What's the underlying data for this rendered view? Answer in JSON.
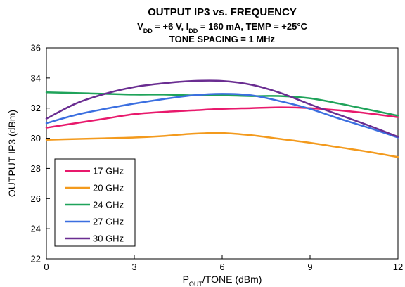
{
  "chart_data": {
    "type": "line",
    "title": "OUTPUT IP3 vs. FREQUENCY",
    "subtitle": {
      "v_sym": "V",
      "v_sub": "DD",
      "v_val": " = +6 V, I",
      "i_sub": "DD",
      "rest": " = 160 mA, TEMP = +25°C"
    },
    "subtitle2": "TONE SPACING = 1 MHz",
    "xlabel": {
      "pre": "P",
      "sub": "OUT",
      "post": "/TONE (dBm)"
    },
    "ylabel": "OUTPUT IP3 (dBm)",
    "xlim": [
      0,
      12
    ],
    "ylim": [
      22,
      36
    ],
    "xticks": [
      0,
      3,
      6,
      9,
      12
    ],
    "yticks": [
      22,
      24,
      26,
      28,
      30,
      32,
      34,
      36
    ],
    "grid": false,
    "legend_position": "bottom-left",
    "x": [
      0,
      1,
      2,
      3,
      4,
      5,
      6,
      7,
      8,
      9,
      10,
      11,
      12
    ],
    "series": [
      {
        "name": "17 GHz",
        "color": "#e8196c",
        "values": [
          30.7,
          31.0,
          31.3,
          31.6,
          31.75,
          31.85,
          31.95,
          32.0,
          32.05,
          32.0,
          31.85,
          31.65,
          31.4
        ]
      },
      {
        "name": "20 GHz",
        "color": "#f39a1d",
        "values": [
          29.9,
          29.95,
          30.0,
          30.05,
          30.15,
          30.3,
          30.35,
          30.2,
          29.95,
          29.7,
          29.4,
          29.1,
          28.75
        ]
      },
      {
        "name": "24 GHz",
        "color": "#1fa35a",
        "values": [
          33.05,
          33.0,
          32.95,
          32.9,
          32.9,
          32.85,
          32.85,
          32.8,
          32.8,
          32.65,
          32.3,
          31.9,
          31.5
        ]
      },
      {
        "name": "27 GHz",
        "color": "#3b6fe0",
        "values": [
          31.0,
          31.55,
          31.95,
          32.3,
          32.6,
          32.85,
          32.95,
          32.85,
          32.45,
          31.95,
          31.3,
          30.7,
          30.05
        ]
      },
      {
        "name": "30 GHz",
        "color": "#6a2d91",
        "values": [
          31.3,
          32.3,
          32.95,
          33.4,
          33.65,
          33.8,
          33.8,
          33.55,
          33.0,
          32.25,
          31.55,
          30.85,
          30.1
        ]
      }
    ]
  }
}
